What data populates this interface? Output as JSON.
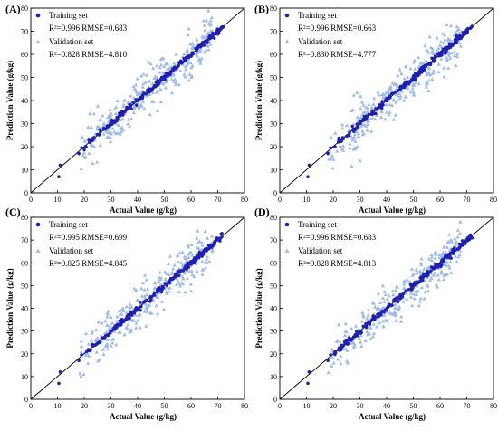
{
  "chart_data": [
    {
      "panel": "(A)",
      "type": "scatter",
      "xlabel": "Actual Value (g/kg)",
      "ylabel": "Prediction Value (g/kg)",
      "xlim": [
        0,
        80
      ],
      "ylim": [
        0,
        80
      ],
      "xticks": [
        "0",
        "10",
        "20",
        "30",
        "40",
        "50",
        "60",
        "70",
        "80"
      ],
      "yticks": [
        "0",
        "10",
        "20",
        "30",
        "40",
        "50",
        "60",
        "70",
        "80"
      ],
      "reference_line": "y = x",
      "legend_position": "top-left",
      "series": [
        {
          "name": "Training set",
          "marker": "circle",
          "color": "#1f1fb4",
          "r2": "0.996",
          "rmse": "0.683",
          "stats_text": "R²=0.996 RMSE=0.683"
        },
        {
          "name": "Validation set",
          "marker": "triangle",
          "color": "#9fbbe8",
          "r2": "0.828",
          "rmse": "4.810",
          "stats_text": "R²=0.828 RMSE=4.810"
        }
      ]
    },
    {
      "panel": "(B)",
      "type": "scatter",
      "xlabel": "Actual Value (g/kg)",
      "ylabel": "Prediction Value (g/kg)",
      "xlim": [
        0,
        80
      ],
      "ylim": [
        0,
        80
      ],
      "xticks": [
        "0",
        "10",
        "20",
        "30",
        "40",
        "50",
        "60",
        "70",
        "80"
      ],
      "yticks": [
        "0",
        "10",
        "20",
        "30",
        "40",
        "50",
        "60",
        "70",
        "80"
      ],
      "reference_line": "y = x",
      "legend_position": "top-left",
      "series": [
        {
          "name": "Training set",
          "marker": "circle",
          "color": "#1f1fb4",
          "r2": "0.996",
          "rmse": "0.663",
          "stats_text": "R²=0.996 RMSE=0.663"
        },
        {
          "name": "Validation set",
          "marker": "triangle",
          "color": "#9fbbe8",
          "r2": "0.830",
          "rmse": "4.777",
          "stats_text": "R²=0.830 RMSE=4.777"
        }
      ]
    },
    {
      "panel": "(C)",
      "type": "scatter",
      "xlabel": "Actual Value (g/kg)",
      "ylabel": "Prediction Value (g/kg)",
      "xlim": [
        0,
        80
      ],
      "ylim": [
        0,
        80
      ],
      "xticks": [
        "0",
        "10",
        "20",
        "30",
        "40",
        "50",
        "60",
        "70",
        "80"
      ],
      "yticks": [
        "0",
        "10",
        "20",
        "30",
        "40",
        "50",
        "60",
        "70",
        "80"
      ],
      "reference_line": "y = x",
      "legend_position": "top-left",
      "series": [
        {
          "name": "Training set",
          "marker": "circle",
          "color": "#1f1fb4",
          "r2": "0.995",
          "rmse": "0.699",
          "stats_text": "R²=0.995 RMSE=0.699"
        },
        {
          "name": "Validation set",
          "marker": "triangle",
          "color": "#9fbbe8",
          "r2": "0.825",
          "rmse": "4.845",
          "stats_text": "R²=0.825 RMSE=4.845"
        }
      ]
    },
    {
      "panel": "(D)",
      "type": "scatter",
      "xlabel": "Actual Value (g/kg)",
      "ylabel": "Prediction Value (g/kg)",
      "xlim": [
        0,
        80
      ],
      "ylim": [
        0,
        80
      ],
      "xticks": [
        "0",
        "10",
        "20",
        "30",
        "40",
        "50",
        "60",
        "70",
        "80"
      ],
      "yticks": [
        "0",
        "10",
        "20",
        "30",
        "40",
        "50",
        "60",
        "70",
        "80"
      ],
      "reference_line": "y = x",
      "legend_position": "top-left",
      "series": [
        {
          "name": "Training set",
          "marker": "circle",
          "color": "#1f1fb4",
          "r2": "0.996",
          "rmse": "0.683",
          "stats_text": "R²=0.996 RMSE=0.683"
        },
        {
          "name": "Validation set",
          "marker": "triangle",
          "color": "#9fbbe8",
          "r2": "0.828",
          "rmse": "4.813",
          "stats_text": "R²=0.828 RMSE=4.813"
        }
      ]
    }
  ]
}
